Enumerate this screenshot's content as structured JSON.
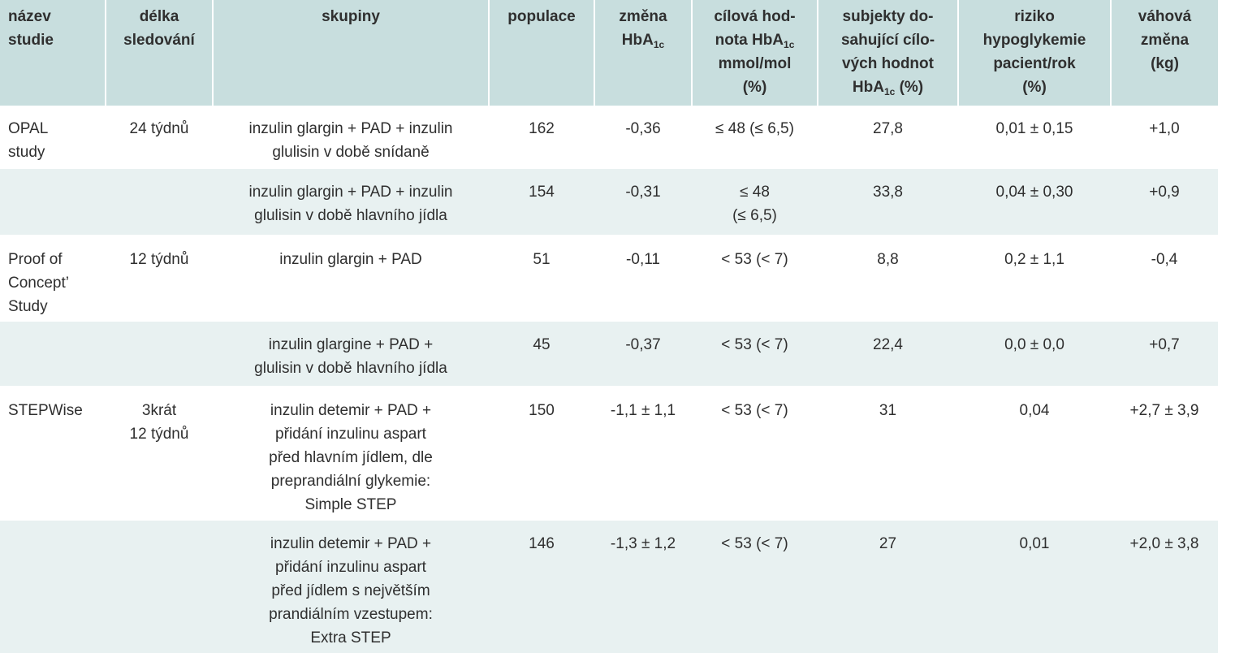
{
  "table": {
    "header": [
      [
        {
          "text": "název\nstudie"
        }
      ],
      [
        {
          "text": "délka\nsledování"
        }
      ],
      [
        {
          "text": "skupiny"
        }
      ],
      [
        {
          "text": "populace"
        }
      ],
      [
        {
          "text": "změna\nHbA"
        },
        {
          "sub": "1c"
        }
      ],
      [
        {
          "text": "cílová hod-\nnota HbA"
        },
        {
          "sub": "1c"
        },
        {
          "text": "\nmmol/mol\n(%)"
        }
      ],
      [
        {
          "text": "subjekty do-\nsahující cílo-\nvých hodnot\nHbA"
        },
        {
          "sub": "1c"
        },
        {
          "text": " (%)"
        }
      ],
      [
        {
          "text": "riziko\nhypoglykemie\npacient/rok\n(%)"
        }
      ],
      [
        {
          "text": "váhová\nzměna\n(kg)"
        }
      ]
    ],
    "rows": [
      [
        "OPAL\nstudy",
        "24 týdnů",
        "inzulin glargin + PAD + inzulin\nglulisin v době snídaně",
        "162",
        "-0,36",
        "≤ 48 (≤ 6,5)",
        "27,8",
        "0,01 ± 0,15",
        "+1,0"
      ],
      [
        null,
        null,
        "inzulin glargin + PAD + inzulin\nglulisin v době hlavního jídla",
        "154",
        "-0,31",
        "≤ 48\n(≤ 6,5)",
        "33,8",
        "0,04 ± 0,30",
        "+0,9"
      ],
      [
        "Proof of\nConcept’\nStudy",
        "12 týdnů",
        "inzulin glargin + PAD",
        "51",
        "-0,11",
        "< 53 (< 7)",
        "8,8",
        "0,2 ± 1,1",
        "-0,4"
      ],
      [
        null,
        null,
        "inzulin glargine + PAD +\nglulisin v době hlavního jídla",
        "45",
        "-0,37",
        "< 53 (< 7)",
        "22,4",
        "0,0 ± 0,0",
        "+0,7"
      ],
      [
        "STEPWise",
        "3krát\n12 týdnů",
        "inzulin detemir + PAD +\npřidání inzulinu aspart\npřed hlavním jídlem, dle\npreprandiální glykemie:\nSimple STEP",
        "150",
        "-1,1 ± 1,1",
        "< 53 (< 7)",
        "31",
        "0,04",
        "+2,7 ± 3,9"
      ],
      [
        null,
        null,
        "inzulin detemir + PAD +\npřidání inzulinu aspart\npřed jídlem s největším\nprandiálním vzestupem:\nExtra STEP",
        "146",
        "-1,3 ± 1,2",
        "< 53 (< 7)",
        "27",
        "0,01",
        "+2,0 ± 3,8"
      ]
    ]
  }
}
